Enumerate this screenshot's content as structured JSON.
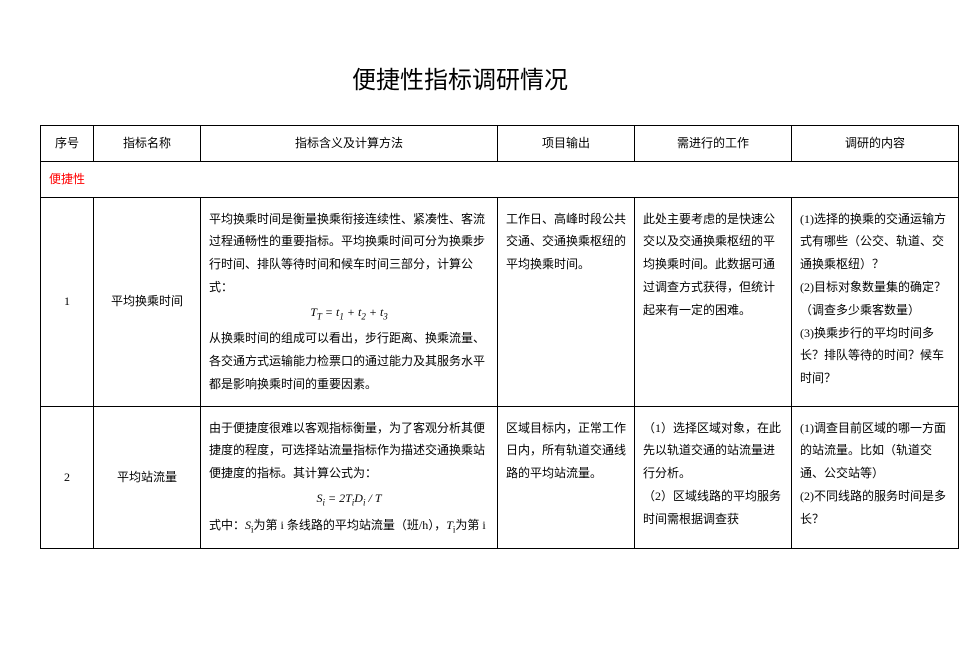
{
  "title": "便捷性指标调研情况",
  "headers": {
    "num": "序号",
    "name": "指标名称",
    "meaning": "指标含义及计算方法",
    "output": "项目输出",
    "work": "需进行的工作",
    "survey": "调研的内容"
  },
  "section": "便捷性",
  "rows": [
    {
      "num": "1",
      "name": "平均换乘时间",
      "meaning_p1": "平均换乘时间是衡量换乘衔接连续性、紧凑性、客流过程通畅性的重要指标。平均换乘时间可分为换乘步行时间、排队等待时间和候车时间三部分，计算公式：",
      "formula": "T  = t  + t  + t",
      "formula_sub_main": "T",
      "formula_sub_1": "1",
      "formula_sub_2": "2",
      "formula_sub_3": "3",
      "meaning_p2": "从换乘时间的组成可以看出，步行距离、换乘流量、各交通方式运输能力检票口的通过能力及其服务水平都是影响换乘时间的重要因素。",
      "output": "工作日、高峰时段公共交通、交通换乘枢纽的平均换乘时间。",
      "work": "此处主要考虑的是快速公交以及交通换乘枢纽的平均换乘时间。此数据可通过调查方式获得，但统计起来有一定的困难。",
      "survey": "(1)选择的换乘的交通运输方式有哪些（公交、轨道、交通换乘枢纽）？\n(2)目标对象数量集的确定？（调查多少乘客数量）\n(3)换乘步行的平均时间多长？排队等待的时间？候车时间？"
    },
    {
      "num": "2",
      "name": "平均站流量",
      "meaning_p1": "由于便捷度很难以客观指标衡量，为了客观分析其便捷度的程度，可选择站流量指标作为描述交通换乘站便捷度的指标。其计算公式为：",
      "formula2_line": "S  = 2T D  / T",
      "meaning_p2": "式中：S 为第 i 条线路的平均站流量（班/h），T 为第 i",
      "output": "区域目标内，正常工作日内，所有轨道交通线路的平均站流量。",
      "work": "（1）选择区域对象，在此先以轨道交通的站流量进行分析。\n（2）区域线路的平均服务时间需根据调查获",
      "survey": "(1)调查目前区域的哪一方面的站流量。比如（轨道交通、公交站等）\n(2)不同线路的服务时间是多长？"
    }
  ]
}
